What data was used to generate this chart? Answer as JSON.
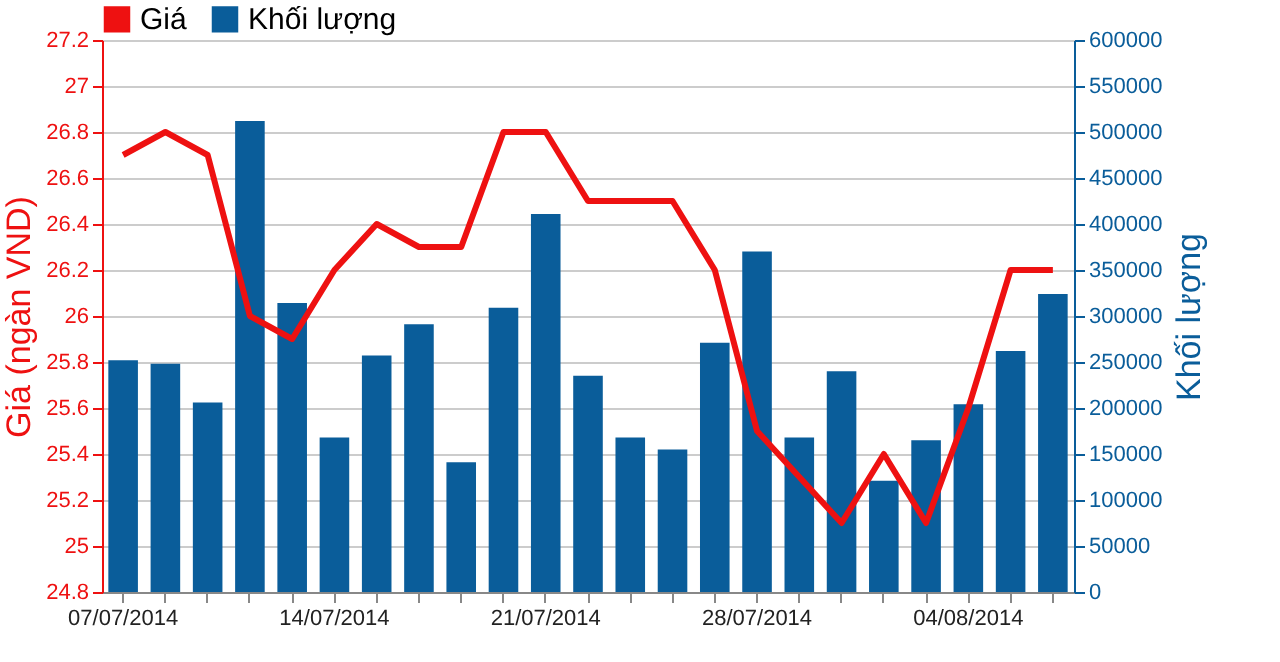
{
  "chart_data": {
    "type": "line",
    "ylabel": "Giá (ngàn VND)",
    "y2label": "Khối lượng",
    "categories": [
      "07/07/2014",
      null,
      null,
      null,
      null,
      "14/07/2014",
      null,
      null,
      null,
      null,
      "21/07/2014",
      null,
      null,
      null,
      null,
      "28/07/2014",
      null,
      null,
      null,
      null,
      "04/08/2014",
      null,
      null
    ],
    "series": [
      {
        "name": "Giá",
        "color": "#ee1111",
        "values": [
          26.7,
          26.8,
          26.7,
          26.0,
          25.9,
          26.2,
          26.4,
          26.3,
          26.3,
          26.8,
          26.8,
          26.5,
          26.5,
          26.5,
          26.2,
          25.5,
          25.3,
          25.1,
          25.4,
          25.1,
          25.6,
          26.2,
          26.2
        ]
      },
      {
        "name": "Khối lượng",
        "type": "bar",
        "axis": "y2",
        "color": "#0a5d9a",
        "values": [
          252000,
          248000,
          206000,
          512000,
          314000,
          168000,
          257000,
          291000,
          141000,
          309000,
          411000,
          235000,
          168000,
          155000,
          271000,
          370000,
          168000,
          240000,
          121000,
          165000,
          204000,
          262000,
          324000
        ]
      }
    ],
    "ylim": [
      24.8,
      27.2
    ],
    "yticks": [
      24.8,
      25,
      25.2,
      25.4,
      25.6,
      25.8,
      26,
      26.2,
      26.4,
      26.6,
      26.8,
      27,
      27.2
    ],
    "y2lim": [
      0,
      600000
    ],
    "y2ticks": [
      0,
      50000,
      100000,
      150000,
      200000,
      250000,
      300000,
      350000,
      400000,
      450000,
      500000,
      550000,
      600000
    ],
    "grid": "y",
    "legend": "top left",
    "marker": "none",
    "line_style": "solid"
  }
}
